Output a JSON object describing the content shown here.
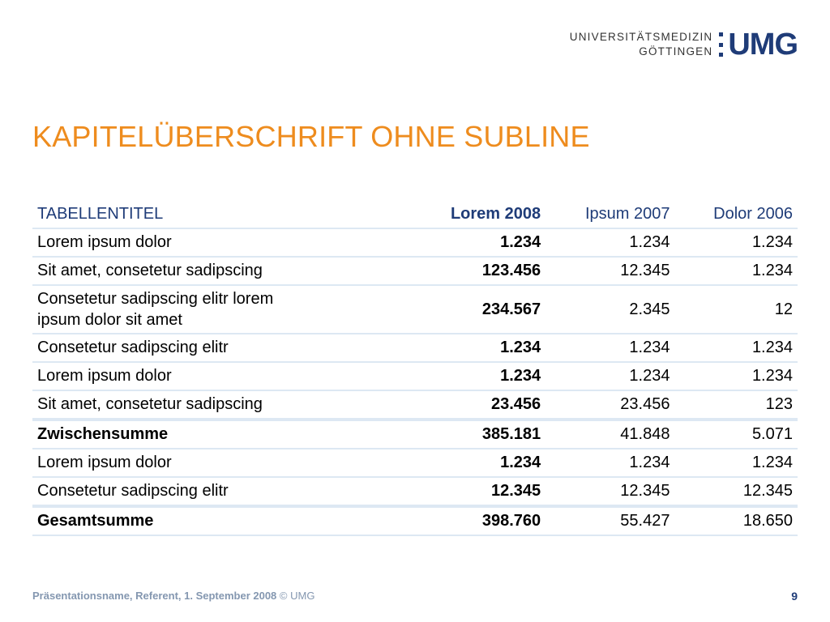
{
  "logo": {
    "line1": "UNIVERSITÄTSMEDIZIN",
    "line2": "GÖTTINGEN",
    "mark": "UMG"
  },
  "title": "KAPITELÜBERSCHRIFT OHNE SUBLINE",
  "table": {
    "headers": [
      "TABELLENTITEL",
      "Lorem 2008",
      "Ipsum 2007",
      "Dolor 2006"
    ],
    "rows": [
      [
        "Lorem ipsum dolor",
        "1.234",
        "1.234",
        "1.234"
      ],
      [
        "Sit amet, consetetur sadipscing",
        "123.456",
        "12.345",
        "1.234"
      ],
      [
        "Consetetur sadipscing elitr lorem ipsum dolor sit amet",
        "234.567",
        "2.345",
        "12"
      ],
      [
        "Consetetur sadipscing elitr",
        "1.234",
        "1.234",
        "1.234"
      ],
      [
        "Lorem ipsum dolor",
        "1.234",
        "1.234",
        "1.234"
      ],
      [
        "Sit amet, consetetur sadipscing",
        "23.456",
        "23.456",
        "123"
      ],
      [
        "Zwischensumme",
        "385.181",
        "41.848",
        "5.071"
      ],
      [
        "Lorem ipsum dolor",
        "1.234",
        "1.234",
        "1.234"
      ],
      [
        "Consetetur sadipscing elitr",
        "12.345",
        "12.345",
        "12.345"
      ],
      [
        "Gesamtsumme",
        "398.760",
        "55.427",
        "18.650"
      ]
    ]
  },
  "footer": {
    "text": "Präsentationsname, Referent, 1. September 2008",
    "copyright": "© UMG"
  },
  "page_number": "9"
}
